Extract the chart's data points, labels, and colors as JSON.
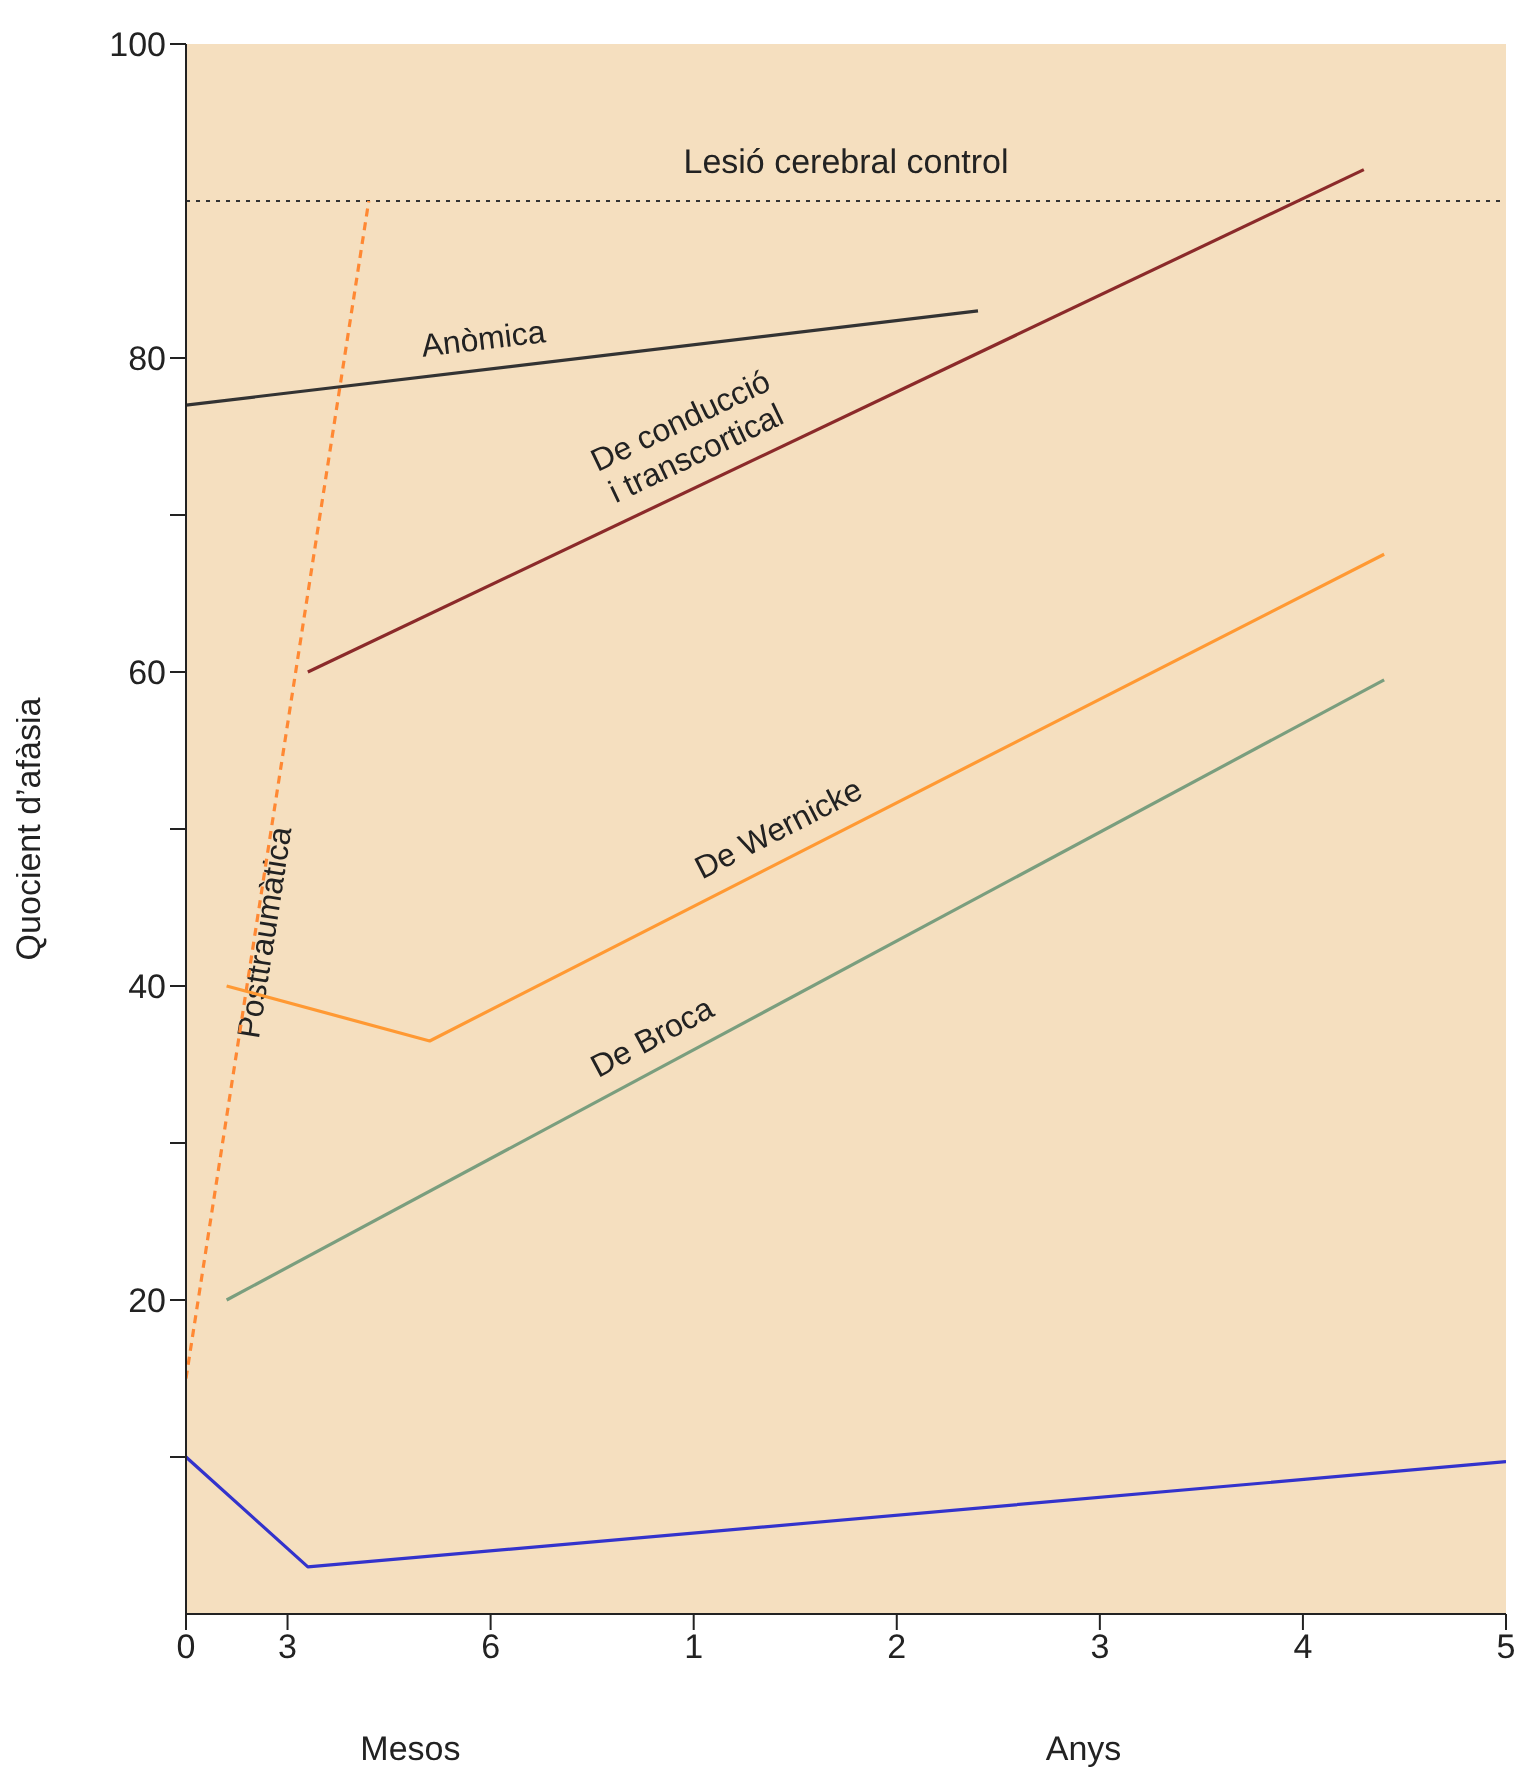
{
  "chart_data": {
    "type": "line",
    "ylabel": "Quocient d’afàsia",
    "annotations": [
      "Mesos",
      "Anys"
    ],
    "categories": [
      "0",
      null,
      null,
      null,
      null,
      "3",
      null,
      null,
      null,
      null,
      null,
      null,
      null,
      null,
      null,
      "6",
      null,
      null,
      null,
      null,
      null,
      null,
      null,
      null,
      null,
      "1",
      null,
      null,
      null,
      null,
      null,
      null,
      null,
      null,
      null,
      "2",
      null,
      null,
      null,
      null,
      null,
      null,
      null,
      null,
      null,
      "3",
      null,
      null,
      null,
      null,
      null,
      null,
      null,
      null,
      null,
      "4",
      null,
      null,
      null,
      null,
      null,
      null,
      null,
      null,
      null,
      "5"
    ],
    "ylim": [
      0,
      100
    ],
    "yticks": [
      {
        "value": 10,
        "label": null
      },
      20,
      {
        "value": 30,
        "label": null
      },
      40,
      {
        "value": 50,
        "label": null
      },
      60,
      {
        "value": 70,
        "label": null
      },
      80,
      100
    ],
    "marker": "none",
    "ref_lines": [
      {
        "axis": "y",
        "value": 90,
        "label": "Lesió cerebral control",
        "color": "#333333",
        "line_style": "dotted"
      }
    ],
    "series": [
      {
        "name": "Posttraumàtica",
        "color": "#ff8833",
        "line_style": "dashed",
        "values": [
          15,
          null,
          null,
          null,
          null,
          null,
          null,
          null,
          null,
          90,
          null,
          null,
          null,
          null,
          null,
          null,
          null,
          null,
          null,
          null,
          null,
          null,
          null,
          null,
          null,
          null,
          null,
          null,
          null,
          null,
          null,
          null,
          null,
          null,
          null,
          null,
          null,
          null,
          null,
          null,
          null,
          null,
          null,
          null,
          null,
          null,
          null,
          null,
          null,
          null,
          null,
          null,
          null,
          null,
          null,
          null,
          null,
          null,
          null,
          null,
          null,
          null,
          null,
          null,
          null,
          null
        ]
      },
      {
        "name": "Anòmica",
        "color": "#333333",
        "values": [
          77,
          null,
          null,
          null,
          null,
          null,
          null,
          null,
          null,
          null,
          null,
          null,
          null,
          null,
          null,
          null,
          null,
          null,
          null,
          null,
          null,
          null,
          null,
          null,
          null,
          null,
          null,
          null,
          null,
          null,
          null,
          null,
          null,
          null,
          null,
          null,
          null,
          null,
          null,
          83,
          null,
          null,
          null,
          null,
          null,
          null,
          null,
          null,
          null,
          null,
          null,
          null,
          null,
          null,
          null,
          null,
          null,
          null,
          null,
          null,
          null,
          null,
          null,
          null,
          null,
          null
        ]
      },
      {
        "name": "De conducció\ni transcortical",
        "color": "#8b2a2a",
        "values": [
          null,
          null,
          null,
          null,
          null,
          null,
          60,
          null,
          null,
          null,
          null,
          null,
          null,
          null,
          null,
          null,
          null,
          null,
          null,
          null,
          null,
          null,
          null,
          null,
          null,
          null,
          null,
          null,
          null,
          null,
          null,
          null,
          null,
          null,
          null,
          null,
          null,
          null,
          null,
          null,
          null,
          null,
          null,
          null,
          null,
          null,
          null,
          null,
          null,
          null,
          null,
          null,
          null,
          null,
          null,
          null,
          null,
          null,
          92,
          null,
          null,
          null,
          null,
          null,
          null,
          null
        ]
      },
      {
        "name": "De Wernicke",
        "color": "#ff9933",
        "values": [
          null,
          null,
          40,
          null,
          null,
          null,
          null,
          null,
          null,
          null,
          null,
          null,
          36.5,
          null,
          null,
          null,
          null,
          null,
          null,
          null,
          null,
          null,
          null,
          null,
          null,
          null,
          null,
          null,
          null,
          null,
          null,
          null,
          null,
          null,
          null,
          null,
          null,
          null,
          null,
          null,
          null,
          null,
          null,
          null,
          null,
          null,
          null,
          null,
          null,
          null,
          null,
          null,
          null,
          null,
          null,
          null,
          null,
          null,
          null,
          67.5,
          null,
          null,
          null,
          null,
          null,
          null
        ]
      },
      {
        "name": "De Broca",
        "color": "#7a9e7e",
        "values": [
          null,
          null,
          20,
          null,
          null,
          null,
          null,
          null,
          null,
          null,
          null,
          null,
          null,
          null,
          null,
          null,
          null,
          null,
          null,
          null,
          null,
          null,
          null,
          null,
          null,
          null,
          null,
          null,
          null,
          null,
          null,
          null,
          null,
          null,
          null,
          null,
          null,
          null,
          null,
          null,
          null,
          null,
          null,
          null,
          null,
          null,
          null,
          null,
          null,
          null,
          null,
          null,
          null,
          null,
          null,
          null,
          null,
          null,
          null,
          59.5,
          null,
          null,
          null,
          null,
          null,
          null
        ]
      },
      {
        "color": "#3333cc",
        "values": [
          10,
          null,
          null,
          null,
          null,
          null,
          3,
          null,
          null,
          null,
          null,
          null,
          null,
          null,
          null,
          null,
          null,
          null,
          null,
          null,
          null,
          null,
          null,
          null,
          null,
          null,
          null,
          null,
          null,
          null,
          null,
          null,
          null,
          null,
          null,
          null,
          null,
          null,
          null,
          null,
          null,
          null,
          null,
          null,
          null,
          null,
          null,
          null,
          null,
          null,
          null,
          null,
          null,
          null,
          null,
          null,
          null,
          null,
          null,
          null,
          null,
          null,
          null,
          null,
          null,
          9.7
        ]
      }
    ]
  }
}
